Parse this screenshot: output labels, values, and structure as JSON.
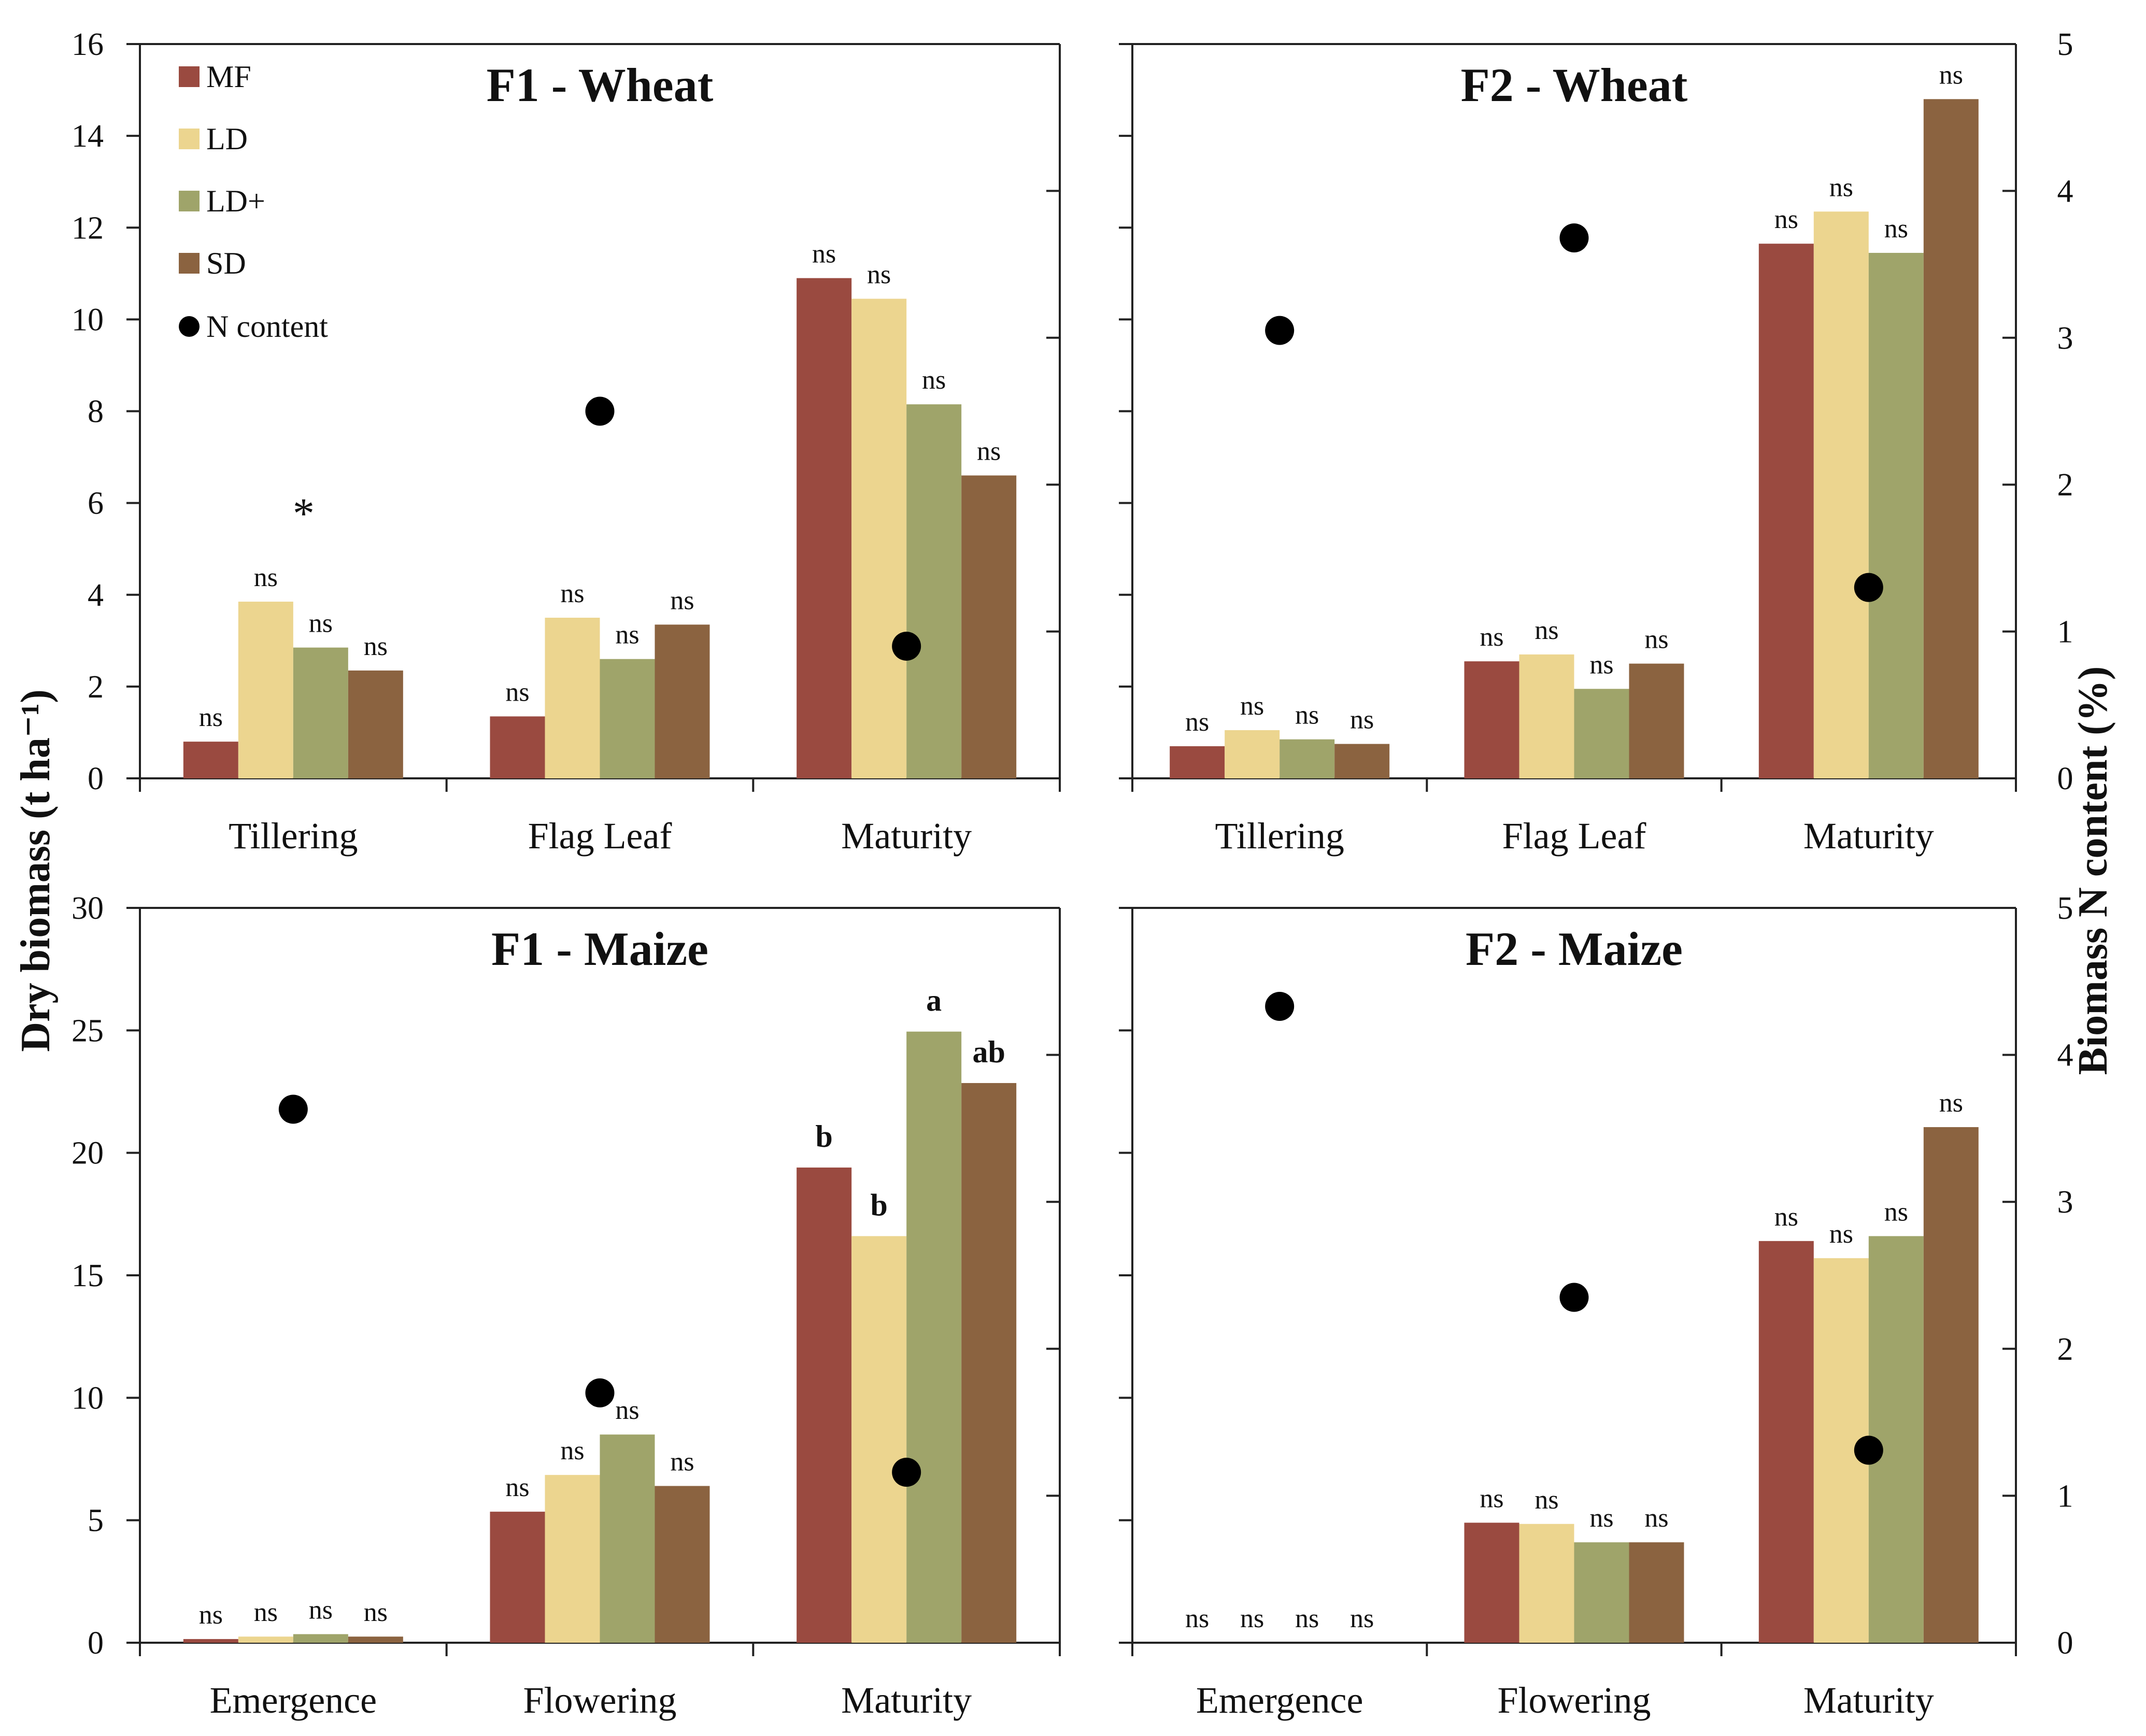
{
  "figure": {
    "ylabel_left": "Dry biomass (t ha⁻¹)",
    "ylabel_right": "Biomass N content (%)"
  },
  "legend": {
    "items": [
      {
        "key": "MF",
        "label": "MF",
        "color": "#9a4a40"
      },
      {
        "key": "LD",
        "label": "LD",
        "color": "#ecd58f"
      },
      {
        "key": "LDplus",
        "label": "LD+",
        "color": "#9fa46a"
      },
      {
        "key": "SD",
        "label": "SD",
        "color": "#8b6340"
      },
      {
        "key": "N",
        "label": "N content",
        "color": "#000000"
      }
    ]
  },
  "chart_data": [
    {
      "id": "f1-wheat",
      "type": "bar",
      "title": "F1 - Wheat",
      "categories": [
        "Tillering",
        "Flag Leaf",
        "Maturity"
      ],
      "ylim": [
        0,
        16
      ],
      "yticks": [
        0,
        2,
        4,
        6,
        8,
        10,
        12,
        14,
        16
      ],
      "y2lim": [
        0,
        5
      ],
      "y2ticks": [
        0,
        1,
        2,
        3,
        4,
        5
      ],
      "show_left_labels": true,
      "show_right_labels": false,
      "series": [
        {
          "name": "MF",
          "values": [
            0.8,
            1.35,
            10.9
          ],
          "labels": [
            "ns",
            "ns",
            "ns"
          ]
        },
        {
          "name": "LD",
          "values": [
            3.85,
            3.5,
            10.45
          ],
          "labels": [
            "ns",
            "ns",
            "ns"
          ]
        },
        {
          "name": "LD+",
          "values": [
            2.85,
            2.6,
            8.15
          ],
          "labels": [
            "ns",
            "ns",
            "ns"
          ]
        },
        {
          "name": "SD",
          "values": [
            2.35,
            3.35,
            6.6
          ],
          "labels": [
            "ns",
            "ns",
            "ns"
          ]
        }
      ],
      "group_marks": [
        "*",
        "",
        ""
      ],
      "n_content": [
        null,
        2.5,
        0.9
      ]
    },
    {
      "id": "f2-wheat",
      "type": "bar",
      "title": "F2 - Wheat",
      "categories": [
        "Tillering",
        "Flag Leaf",
        "Maturity"
      ],
      "ylim": [
        0,
        16
      ],
      "yticks": [
        0,
        2,
        4,
        6,
        8,
        10,
        12,
        14,
        16
      ],
      "y2lim": [
        0,
        5
      ],
      "y2ticks": [
        0,
        1,
        2,
        3,
        4,
        5
      ],
      "show_left_labels": false,
      "show_right_labels": true,
      "series": [
        {
          "name": "MF",
          "values": [
            0.7,
            2.55,
            11.65
          ],
          "labels": [
            "ns",
            "ns",
            "ns"
          ]
        },
        {
          "name": "LD",
          "values": [
            1.05,
            2.7,
            12.35
          ],
          "labels": [
            "ns",
            "ns",
            "ns"
          ]
        },
        {
          "name": "LD+",
          "values": [
            0.85,
            1.95,
            11.45
          ],
          "labels": [
            "ns",
            "ns",
            "ns"
          ]
        },
        {
          "name": "SD",
          "values": [
            0.75,
            2.5,
            14.8
          ],
          "labels": [
            "ns",
            "ns",
            "ns"
          ]
        }
      ],
      "group_marks": [
        "",
        "",
        ""
      ],
      "n_content": [
        3.05,
        3.68,
        1.3
      ]
    },
    {
      "id": "f1-maize",
      "type": "bar",
      "title": "F1 - Maize",
      "categories": [
        "Emergence",
        "Flowering",
        "Maturity"
      ],
      "ylim": [
        0,
        30
      ],
      "yticks": [
        0,
        5,
        10,
        15,
        20,
        25,
        30
      ],
      "y2lim": [
        0,
        5
      ],
      "y2ticks": [
        0,
        1,
        2,
        3,
        4,
        5
      ],
      "show_left_labels": true,
      "show_right_labels": false,
      "series": [
        {
          "name": "MF",
          "values": [
            0.15,
            5.35,
            19.4
          ],
          "labels": [
            "ns",
            "ns",
            "b"
          ]
        },
        {
          "name": "LD",
          "values": [
            0.25,
            6.85,
            16.6
          ],
          "labels": [
            "ns",
            "ns",
            "b"
          ]
        },
        {
          "name": "LD+",
          "values": [
            0.35,
            8.5,
            24.95
          ],
          "labels": [
            "ns",
            "ns",
            "a"
          ]
        },
        {
          "name": "SD",
          "values": [
            0.25,
            6.4,
            22.85
          ],
          "labels": [
            "ns",
            "ns",
            "ab"
          ]
        }
      ],
      "group_marks": [
        "",
        "",
        ""
      ],
      "n_content": [
        3.63,
        1.7,
        1.16
      ]
    },
    {
      "id": "f2-maize",
      "type": "bar",
      "title": "F2 - Maize",
      "categories": [
        "Emergence",
        "Flowering",
        "Maturity"
      ],
      "ylim": [
        0,
        30
      ],
      "yticks": [
        0,
        5,
        10,
        15,
        20,
        25,
        30
      ],
      "y2lim": [
        0,
        5
      ],
      "y2ticks": [
        0,
        1,
        2,
        3,
        4,
        5
      ],
      "show_left_labels": false,
      "show_right_labels": true,
      "series": [
        {
          "name": "MF",
          "values": [
            0,
            4.9,
            16.4
          ],
          "labels": [
            "ns",
            "ns",
            "ns"
          ]
        },
        {
          "name": "LD",
          "values": [
            0,
            4.85,
            15.7
          ],
          "labels": [
            "ns",
            "ns",
            "ns"
          ]
        },
        {
          "name": "LD+",
          "values": [
            0,
            4.1,
            16.6
          ],
          "labels": [
            "ns",
            "ns",
            "ns"
          ]
        },
        {
          "name": "SD",
          "values": [
            0,
            4.1,
            21.05
          ],
          "labels": [
            "ns",
            "ns",
            "ns"
          ]
        }
      ],
      "group_marks": [
        "",
        "",
        ""
      ],
      "n_content": [
        4.33,
        2.35,
        1.31
      ]
    }
  ]
}
